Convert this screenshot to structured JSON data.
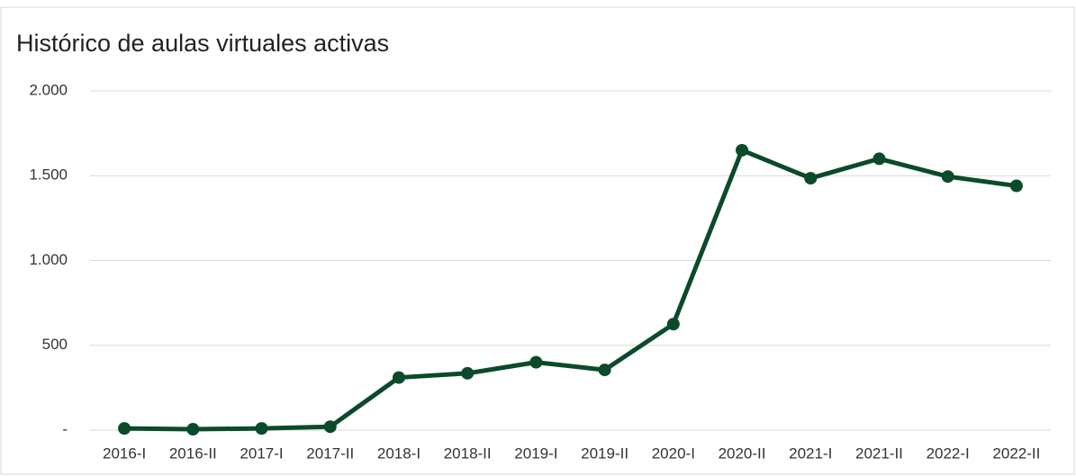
{
  "chart_data": {
    "type": "line",
    "title": "Histórico de aulas virtuales activas",
    "categories": [
      "2016-I",
      "2016-II",
      "2017-I",
      "2017-II",
      "2018-I",
      "2018-II",
      "2019-I",
      "2019-II",
      "2020-I",
      "2020-II",
      "2021-I",
      "2021-II",
      "2022-I",
      "2022-II"
    ],
    "series": [
      {
        "name": "Aulas virtuales activas",
        "color": "#0b4a2a",
        "values": [
          10,
          5,
          10,
          20,
          310,
          335,
          400,
          355,
          625,
          1650,
          1485,
          1600,
          1495,
          1440
        ]
      }
    ],
    "ylim": [
      0,
      2000
    ],
    "yticks": [
      {
        "value": 0,
        "label": "-"
      },
      500,
      {
        "value": 1000,
        "label": "1.000"
      },
      {
        "value": 1500,
        "label": "1.500"
      },
      {
        "value": 2000,
        "label": "2.000"
      }
    ],
    "grid": true
  }
}
